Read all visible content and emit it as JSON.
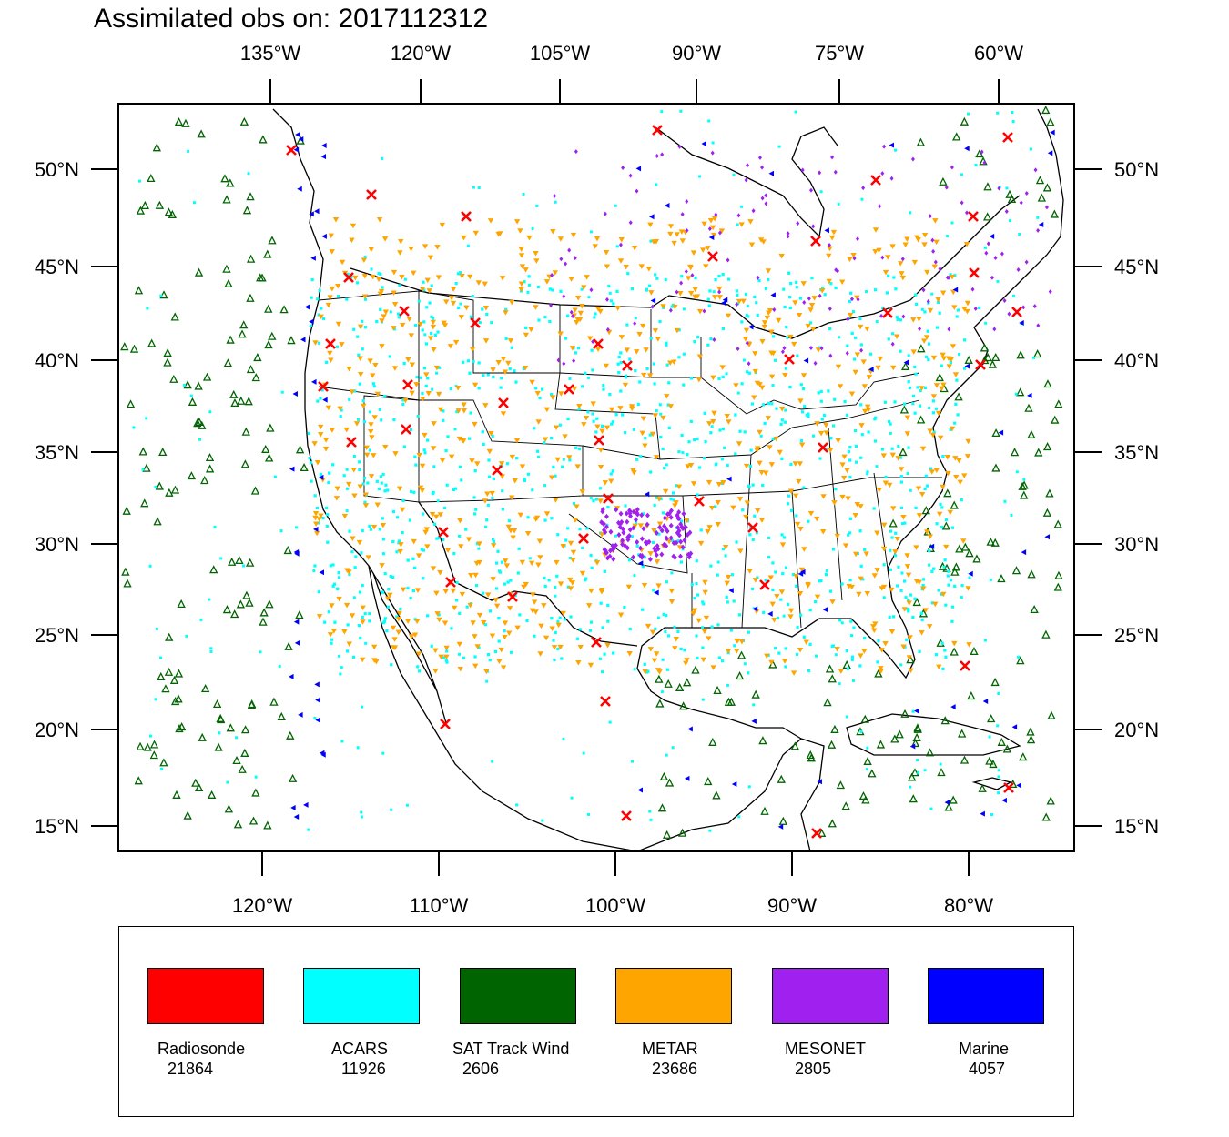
{
  "title": "Assimilated obs on: 2017112312",
  "map": {
    "top_axis_labels": [
      "135°W",
      "120°W",
      "105°W",
      "90°W",
      "75°W",
      "60°W"
    ],
    "bottom_axis_labels": [
      "120°W",
      "110°W",
      "100°W",
      "90°W",
      "80°W"
    ],
    "left_axis_labels": [
      "50°N",
      "45°N",
      "40°N",
      "35°N",
      "30°N",
      "25°N",
      "20°N",
      "15°N"
    ],
    "right_axis_labels": [
      "50°N",
      "45°N",
      "40°N",
      "35°N",
      "30°N",
      "25°N",
      "20°N",
      "15°N"
    ]
  },
  "legend": [
    {
      "name": "Radiosonde",
      "count": "21864",
      "color": "#ff0000",
      "icon": "x-marker-icon"
    },
    {
      "name": "ACARS",
      "count": "11926",
      "color": "#00ffff",
      "icon": "square-marker-icon"
    },
    {
      "name": "SAT Track Wind",
      "count": "2606",
      "color": "#006400",
      "icon": "triangle-up-marker-icon"
    },
    {
      "name": "METAR",
      "count": "23686",
      "color": "#ffa500",
      "icon": "triangle-down-marker-icon"
    },
    {
      "name": "MESONET",
      "count": "2805",
      "color": "#a020f0",
      "icon": "diamond-marker-icon"
    },
    {
      "name": "Marine",
      "count": "4057",
      "color": "#0000ff",
      "icon": "triangle-left-marker-icon"
    }
  ]
}
